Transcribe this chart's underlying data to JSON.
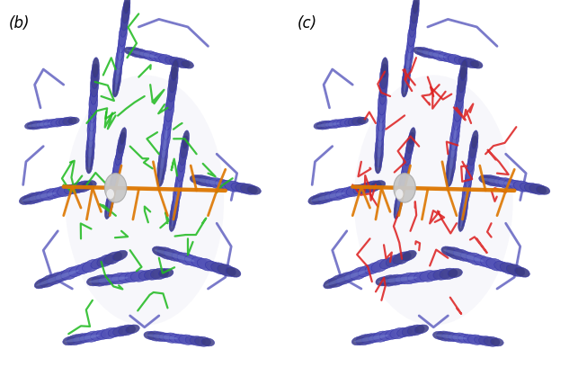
{
  "figure_width": 6.43,
  "figure_height": 4.28,
  "dpi": 100,
  "bg_color": "#ffffff",
  "label_b": "(b)",
  "label_c": "(c)",
  "label_fontsize": 12,
  "protein_color": "#5555bb",
  "protein_edge": "#3333aa",
  "protein_light": "#8899dd",
  "protein_shadow": "#333380",
  "hydrophobic_color": "#22bb22",
  "hydrophilic_color": "#dd2222",
  "ligand_color": "#dd7700",
  "sphere_color": "#c8c8c8",
  "sphere_edge": "#999999",
  "interior_color": "#d8d8ee",
  "helix_lw": 1.0
}
